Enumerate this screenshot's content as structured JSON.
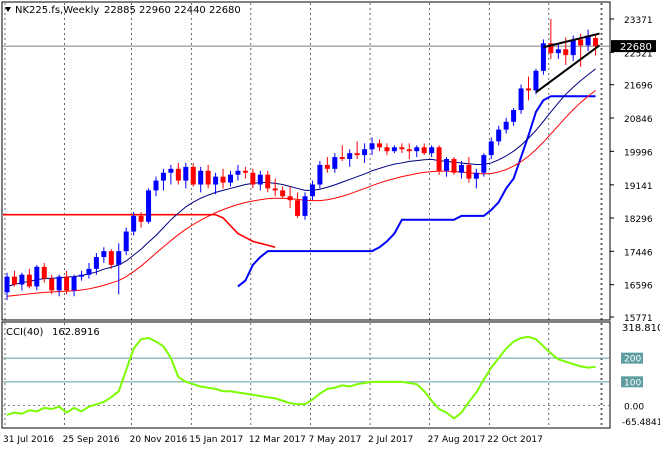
{
  "header": {
    "symbol": "NK225.fs,Weekly",
    "ohlc": "22885 22960 22440 22680"
  },
  "indicator": {
    "name": "CCI(40)",
    "value": "162.8916",
    "levels": [
      "200",
      "100",
      "0.00"
    ],
    "ylabels": [
      "318.8103",
      "-65.4841"
    ]
  },
  "chart_data": [
    {
      "type": "candlestick",
      "title": "NK225.fs,Weekly",
      "ylim": [
        15771,
        23371
      ],
      "yticks": [
        15771,
        16596,
        17446,
        18296,
        19141,
        19996,
        20846,
        21696,
        22521,
        23371
      ],
      "xticks": [
        "31 Jul 2016",
        "25 Sep 2016",
        "20 Nov 2016",
        "15 Jan 2017",
        "12 Mar 2017",
        "7 May 2017",
        "2 Jul 2017",
        "27 Aug 2017",
        "22 Oct 2017"
      ],
      "last_price": 22680,
      "last_price_label": "22680",
      "candles": [
        [
          16400,
          16900,
          16200,
          16800
        ],
        [
          16800,
          16950,
          16550,
          16600
        ],
        [
          16600,
          16900,
          16450,
          16850
        ],
        [
          16850,
          17000,
          16500,
          16550
        ],
        [
          16550,
          17100,
          16450,
          17050
        ],
        [
          17050,
          17150,
          16650,
          16750
        ],
        [
          16750,
          16850,
          16350,
          16450
        ],
        [
          16450,
          16850,
          16300,
          16800
        ],
        [
          16800,
          16950,
          16350,
          16450
        ],
        [
          16450,
          16850,
          16300,
          16800
        ],
        [
          16800,
          16950,
          16700,
          16850
        ],
        [
          16850,
          17150,
          16750,
          17000
        ],
        [
          17000,
          17400,
          16850,
          17300
        ],
        [
          17300,
          17550,
          17150,
          17450
        ],
        [
          17450,
          17500,
          17000,
          17100
        ],
        [
          17100,
          17650,
          16350,
          17450
        ],
        [
          17450,
          18050,
          17350,
          17950
        ],
        [
          17950,
          18450,
          17850,
          18350
        ],
        [
          18350,
          18450,
          18050,
          18200
        ],
        [
          18200,
          19050,
          18150,
          19000
        ],
        [
          19000,
          19350,
          18850,
          19250
        ],
        [
          19250,
          19550,
          19000,
          19450
        ],
        [
          19450,
          19650,
          19150,
          19550
        ],
        [
          19550,
          19700,
          19150,
          19250
        ],
        [
          19250,
          19700,
          19050,
          19600
        ],
        [
          19600,
          19700,
          19100,
          19150
        ],
        [
          19150,
          19600,
          18950,
          19500
        ],
        [
          19500,
          19650,
          19050,
          19150
        ],
        [
          19150,
          19450,
          18900,
          19350
        ],
        [
          19350,
          19550,
          19050,
          19200
        ],
        [
          19200,
          19500,
          19100,
          19400
        ],
        [
          19400,
          19650,
          19250,
          19500
        ],
        [
          19500,
          19600,
          19300,
          19450
        ],
        [
          19450,
          19550,
          19050,
          19150
        ],
        [
          19150,
          19500,
          19000,
          19400
        ],
        [
          19400,
          19500,
          18950,
          19050
        ],
        [
          19050,
          19300,
          18850,
          19000
        ],
        [
          19000,
          19100,
          18800,
          18850
        ],
        [
          18850,
          19100,
          18550,
          18750
        ],
        [
          18750,
          18950,
          18300,
          18350
        ],
        [
          18350,
          18950,
          18250,
          18850
        ],
        [
          18850,
          19250,
          18750,
          19150
        ],
        [
          19150,
          19750,
          19050,
          19650
        ],
        [
          19650,
          19850,
          19450,
          19550
        ],
        [
          19550,
          19950,
          19450,
          19850
        ],
        [
          19850,
          20150,
          19750,
          19800
        ],
        [
          19800,
          20050,
          19600,
          19950
        ],
        [
          19950,
          20250,
          19800,
          19900
        ],
        [
          19900,
          20200,
          19700,
          20050
        ],
        [
          20050,
          20350,
          19900,
          20200
        ],
        [
          20200,
          20300,
          20000,
          20100
        ],
        [
          20100,
          20200,
          19900,
          20000
        ],
        [
          20000,
          20150,
          19950,
          20100
        ],
        [
          20100,
          20200,
          19950,
          20050
        ],
        [
          20050,
          20200,
          19800,
          20000
        ],
        [
          20000,
          20150,
          19850,
          20100
        ],
        [
          20100,
          20200,
          19900,
          19950
        ],
        [
          19950,
          20150,
          19850,
          20100
        ],
        [
          20100,
          20150,
          19400,
          19500
        ],
        [
          19500,
          19850,
          19350,
          19800
        ],
        [
          19800,
          19850,
          19400,
          19450
        ],
        [
          19450,
          19750,
          19300,
          19650
        ],
        [
          19650,
          19850,
          19200,
          19300
        ],
        [
          19300,
          19550,
          19050,
          19450
        ],
        [
          19450,
          19950,
          19350,
          19900
        ],
        [
          19900,
          20350,
          19800,
          20250
        ],
        [
          20250,
          20650,
          20150,
          20550
        ],
        [
          20550,
          20850,
          20450,
          20750
        ],
        [
          20750,
          21100,
          20650,
          21050
        ],
        [
          21050,
          21700,
          20950,
          21600
        ],
        [
          21600,
          21900,
          21300,
          21550
        ],
        [
          21550,
          22100,
          21450,
          22050
        ],
        [
          22050,
          22850,
          21950,
          22750
        ],
        [
          22750,
          23371,
          22350,
          22500
        ],
        [
          22500,
          22750,
          22350,
          22600
        ],
        [
          22600,
          22900,
          22200,
          22450
        ],
        [
          22450,
          22950,
          22300,
          22850
        ],
        [
          22850,
          23000,
          22150,
          22700
        ],
        [
          22700,
          23100,
          22550,
          22950
        ],
        [
          22885,
          22960,
          22440,
          22680
        ]
      ],
      "ma_fast": [
        16550,
        16600,
        16650,
        16680,
        16720,
        16750,
        16760,
        16770,
        16790,
        16800,
        16830,
        16870,
        16920,
        16990,
        17040,
        17100,
        17200,
        17350,
        17500,
        17680,
        17850,
        18050,
        18250,
        18420,
        18580,
        18700,
        18800,
        18880,
        18950,
        19000,
        19050,
        19100,
        19150,
        19180,
        19200,
        19200,
        19180,
        19150,
        19100,
        19050,
        19000,
        19000,
        19030,
        19080,
        19140,
        19210,
        19280,
        19350,
        19420,
        19500,
        19560,
        19620,
        19670,
        19700,
        19740,
        19760,
        19780,
        19790,
        19760,
        19740,
        19720,
        19700,
        19680,
        19660,
        19660,
        19700,
        19780,
        19880,
        20000,
        20150,
        20330,
        20530,
        20760,
        21000,
        21230,
        21450,
        21630,
        21800,
        21950,
        22100
      ],
      "ma_slow": [
        16300,
        16320,
        16340,
        16360,
        16380,
        16400,
        16410,
        16420,
        16430,
        16440,
        16460,
        16490,
        16530,
        16580,
        16640,
        16700,
        16800,
        16930,
        17070,
        17230,
        17400,
        17560,
        17720,
        17870,
        18010,
        18130,
        18240,
        18340,
        18430,
        18510,
        18580,
        18640,
        18690,
        18730,
        18760,
        18790,
        18800,
        18800,
        18790,
        18770,
        18750,
        18740,
        18740,
        18760,
        18800,
        18850,
        18910,
        18980,
        19050,
        19120,
        19190,
        19250,
        19300,
        19350,
        19390,
        19430,
        19460,
        19480,
        19490,
        19490,
        19480,
        19470,
        19450,
        19430,
        19420,
        19430,
        19470,
        19530,
        19620,
        19730,
        19870,
        20040,
        20230,
        20440,
        20650,
        20860,
        21060,
        21240,
        21400,
        21550
      ],
      "support_line": [
        [
          0,
          18380
        ],
        [
          28,
          18380
        ],
        [
          29,
          18300
        ],
        [
          30,
          18100
        ],
        [
          31,
          17900
        ],
        [
          32,
          17800
        ],
        [
          33,
          17700
        ],
        [
          34,
          17650
        ],
        [
          35,
          17600
        ],
        [
          36,
          17550
        ]
      ],
      "blue_level": [
        [
          31,
          16550
        ],
        [
          32,
          16700
        ],
        [
          33,
          17100
        ],
        [
          34,
          17300
        ],
        [
          35,
          17450
        ],
        [
          49,
          17450
        ],
        [
          50,
          17550
        ],
        [
          51,
          17700
        ],
        [
          52,
          17900
        ],
        [
          53,
          18250
        ],
        [
          60,
          18250
        ],
        [
          61,
          18350
        ],
        [
          64,
          18350
        ],
        [
          65,
          18500
        ],
        [
          66,
          18700
        ],
        [
          67,
          19050
        ],
        [
          68,
          19300
        ],
        [
          69,
          19850
        ],
        [
          70,
          20400
        ],
        [
          71,
          21000
        ],
        [
          72,
          21300
        ],
        [
          73,
          21400
        ],
        [
          79,
          21400
        ]
      ],
      "wedge_upper": [
        [
          72,
          22650
        ],
        [
          79,
          23000
        ]
      ],
      "wedge_lower": [
        [
          71,
          21500
        ],
        [
          79,
          22700
        ]
      ]
    },
    {
      "type": "line",
      "title": "CCI(40) 162.8916",
      "ylim": [
        -65.4841,
        318.8103
      ],
      "levels": [
        200,
        100,
        0
      ],
      "values": [
        -40,
        -30,
        -35,
        -20,
        -25,
        -10,
        -15,
        -5,
        -30,
        -10,
        -25,
        -5,
        5,
        15,
        35,
        60,
        150,
        240,
        280,
        285,
        270,
        250,
        200,
        120,
        100,
        90,
        80,
        75,
        70,
        60,
        60,
        55,
        50,
        45,
        40,
        35,
        30,
        20,
        10,
        5,
        5,
        25,
        50,
        70,
        75,
        85,
        80,
        90,
        95,
        100,
        100,
        100,
        100,
        100,
        95,
        90,
        60,
        20,
        -15,
        -30,
        -55,
        -30,
        15,
        55,
        110,
        160,
        200,
        240,
        270,
        285,
        290,
        280,
        250,
        220,
        195,
        185,
        175,
        165,
        160,
        163
      ]
    }
  ],
  "colors": {
    "up": "#0000ff",
    "down": "#ff0000",
    "ma_fast": "#000080",
    "ma_slow": "#ff0000",
    "support": "#ff0000",
    "blue_level": "#0000ff",
    "wedge": "#000000",
    "cci": "#7cfc00",
    "levels": "#5f9ea0",
    "grid": "#000000"
  }
}
